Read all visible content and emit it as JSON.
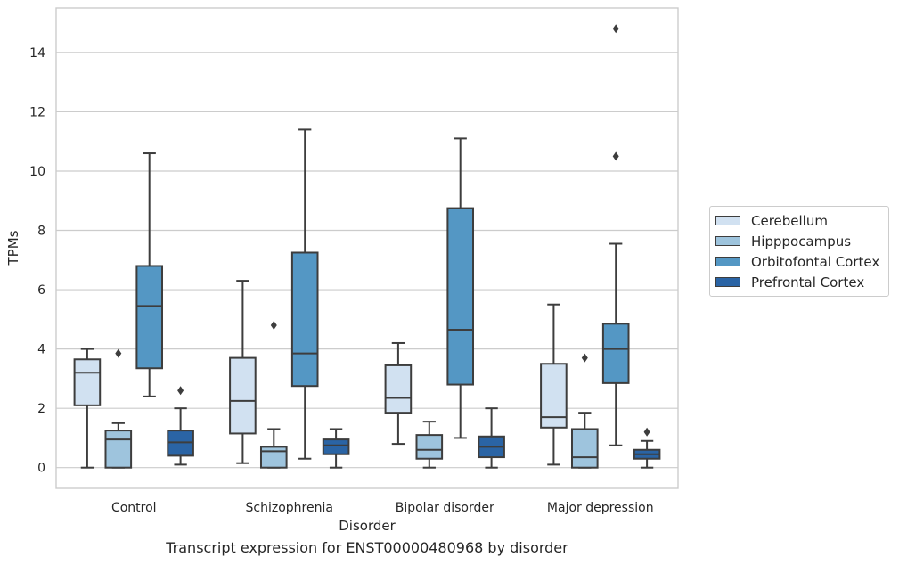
{
  "chart_data": {
    "type": "boxplot",
    "title": "",
    "caption": "Transcript expression for ENST00000480968 by disorder",
    "xlabel": "Disorder",
    "ylabel": "TPMs",
    "ylim": [
      -0.7,
      15.5
    ],
    "yticks": [
      0,
      2,
      4,
      6,
      8,
      10,
      12,
      14
    ],
    "grid": "horizontal",
    "legend_position": "right",
    "categories": [
      "Control",
      "Schizophrenia",
      "Bipolar disorder",
      "Major depression"
    ],
    "series": [
      {
        "name": "Cerebellum",
        "color": "#d1e1f1",
        "boxes": [
          {
            "whislo": 0.0,
            "q1": 2.1,
            "med": 3.2,
            "q3": 3.65,
            "whishi": 4.0,
            "fliers": []
          },
          {
            "whislo": 0.15,
            "q1": 1.15,
            "med": 2.25,
            "q3": 3.7,
            "whishi": 6.3,
            "fliers": []
          },
          {
            "whislo": 0.8,
            "q1": 1.85,
            "med": 2.35,
            "q3": 3.45,
            "whishi": 4.2,
            "fliers": []
          },
          {
            "whislo": 0.1,
            "q1": 1.35,
            "med": 1.7,
            "q3": 3.5,
            "whishi": 5.5,
            "fliers": []
          }
        ]
      },
      {
        "name": "Hipppocampus",
        "color": "#9ec4dd",
        "boxes": [
          {
            "whislo": 0.0,
            "q1": 0.0,
            "med": 0.95,
            "q3": 1.25,
            "whishi": 1.5,
            "fliers": [
              3.85
            ]
          },
          {
            "whislo": 0.0,
            "q1": 0.0,
            "med": 0.55,
            "q3": 0.7,
            "whishi": 1.3,
            "fliers": [
              4.8
            ]
          },
          {
            "whislo": 0.0,
            "q1": 0.3,
            "med": 0.6,
            "q3": 1.1,
            "whishi": 1.55,
            "fliers": []
          },
          {
            "whislo": 0.0,
            "q1": 0.0,
            "med": 0.35,
            "q3": 1.3,
            "whishi": 1.85,
            "fliers": [
              3.7
            ]
          }
        ]
      },
      {
        "name": "Orbitofontal Cortex",
        "color": "#5497c4",
        "boxes": [
          {
            "whislo": 2.4,
            "q1": 3.35,
            "med": 5.45,
            "q3": 6.8,
            "whishi": 10.6,
            "fliers": []
          },
          {
            "whislo": 0.3,
            "q1": 2.75,
            "med": 3.85,
            "q3": 7.25,
            "whishi": 11.4,
            "fliers": []
          },
          {
            "whislo": 1.0,
            "q1": 2.8,
            "med": 4.65,
            "q3": 8.75,
            "whishi": 11.1,
            "fliers": []
          },
          {
            "whislo": 0.75,
            "q1": 2.85,
            "med": 4.0,
            "q3": 4.85,
            "whishi": 7.55,
            "fliers": [
              10.5,
              14.8
            ]
          }
        ]
      },
      {
        "name": "Prefrontal Cortex",
        "color": "#2a64a5",
        "boxes": [
          {
            "whislo": 0.1,
            "q1": 0.4,
            "med": 0.85,
            "q3": 1.25,
            "whishi": 2.0,
            "fliers": [
              2.6
            ]
          },
          {
            "whislo": 0.0,
            "q1": 0.45,
            "med": 0.75,
            "q3": 0.95,
            "whishi": 1.3,
            "fliers": []
          },
          {
            "whislo": 0.0,
            "q1": 0.35,
            "med": 0.7,
            "q3": 1.05,
            "whishi": 2.0,
            "fliers": []
          },
          {
            "whislo": 0.0,
            "q1": 0.3,
            "med": 0.45,
            "q3": 0.6,
            "whishi": 0.9,
            "fliers": [
              1.2
            ]
          }
        ]
      }
    ]
  }
}
